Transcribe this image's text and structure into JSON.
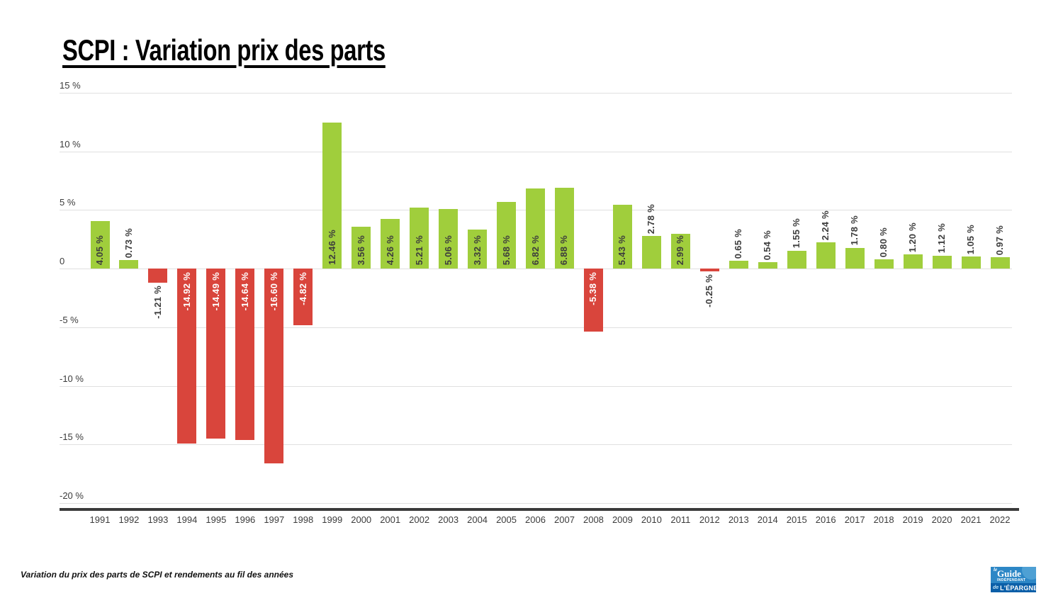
{
  "page": {
    "title": "SCPI : Variation prix des parts",
    "caption": "Variation du prix des parts de SCPI et rendements au fil des années"
  },
  "logo": {
    "le": "le",
    "guide": "Guide",
    "independant": "INDÉPENDANT",
    "de": "de",
    "epargne": "L'ÉPARGNE"
  },
  "colors": {
    "positive_bar": "#a0ce3c",
    "negative_bar": "#d9453c",
    "gridline": "#e0e0e0",
    "axis_line": "#3b3b3b",
    "label_on_positive": "#3d3d3d",
    "label_on_negative": "#ffffff",
    "label_outside": "#3d3d3d",
    "axis_text": "#3c3c3c",
    "logo_blue": "#2d87c6",
    "logo_dark_blue": "#0b5fa8",
    "logo_light_circle": "#55a5d6"
  },
  "chart_data": {
    "type": "bar",
    "title": "SCPI : Variation prix des parts",
    "xlabel": "",
    "ylabel": "",
    "unit": "%",
    "grid": true,
    "legend": "none",
    "ylim": [
      -20,
      15
    ],
    "bar_color_rule": "positive=green, negative=red",
    "categories": [
      "1991",
      "1992",
      "1993",
      "1994",
      "1995",
      "1996",
      "1997",
      "1998",
      "1999",
      "2000",
      "2001",
      "2002",
      "2003",
      "2004",
      "2005",
      "2006",
      "2007",
      "2008",
      "2009",
      "2010",
      "2011",
      "2012",
      "2013",
      "2014",
      "2015",
      "2016",
      "2017",
      "2018",
      "2019",
      "2020",
      "2021",
      "2022"
    ],
    "values": [
      4.05,
      0.73,
      -1.21,
      -14.92,
      -14.49,
      -14.64,
      -16.6,
      -4.82,
      12.46,
      3.56,
      4.26,
      5.21,
      5.06,
      3.32,
      5.68,
      6.82,
      6.88,
      -5.38,
      5.43,
      2.78,
      2.99,
      -0.25,
      0.65,
      0.54,
      1.55,
      2.24,
      1.78,
      0.8,
      1.2,
      1.12,
      1.05,
      0.97
    ],
    "labels": [
      "4.05 %",
      "0.73 %",
      "-1.21 %",
      "-14.92 %",
      "-14.49 %",
      "-14.64 %",
      "-16.60 %",
      "-4.82 %",
      "12.46 %",
      "3.56 %",
      "4.26 %",
      "5.21 %",
      "5.06 %",
      "3.32 %",
      "5.68 %",
      "6.82 %",
      "6.88 %",
      "-5.38 %",
      "5.43 %",
      "2.78 %",
      "2.99 %",
      "-0.25 %",
      "0.65 %",
      "0.54 %",
      "1.55 %",
      "2.24 %",
      "1.78 %",
      "0.80 %",
      "1.20 %",
      "1.12 %",
      "1.05 %",
      "0.97 %"
    ],
    "yticks": [
      {
        "value": 15,
        "label": "15 %"
      },
      {
        "value": 10,
        "label": "10 %"
      },
      {
        "value": 5,
        "label": "5 %"
      },
      {
        "value": 0,
        "label": "0"
      },
      {
        "value": -5,
        "label": "-5 %"
      },
      {
        "value": -10,
        "label": "-10 %"
      },
      {
        "value": -15,
        "label": "-15 %"
      },
      {
        "value": -20,
        "label": "-20 %"
      }
    ]
  }
}
